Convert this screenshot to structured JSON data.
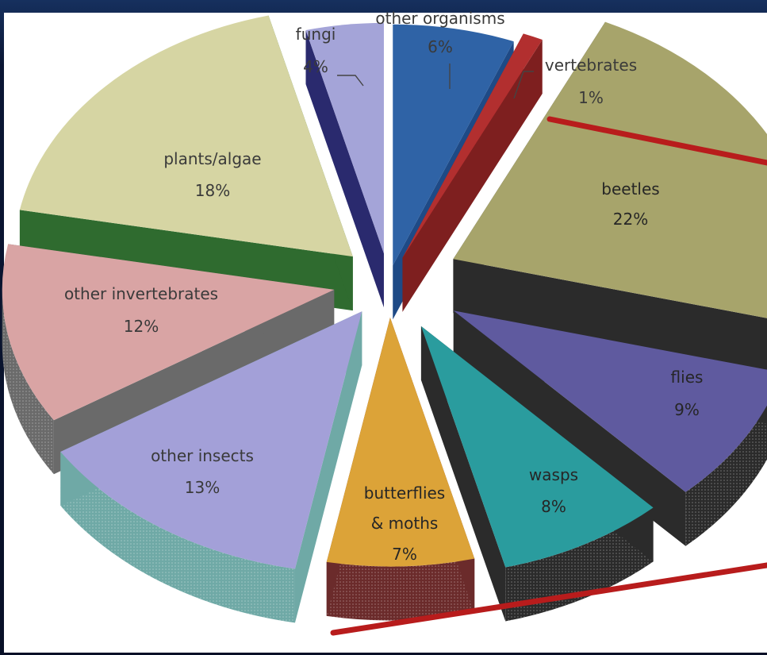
{
  "chart_data": {
    "type": "pie",
    "title": "",
    "legend": "none",
    "categories": [
      "other organisms",
      "vertebrates",
      "beetles",
      "flies",
      "wasps",
      "butterflies & moths",
      "other insects",
      "other invertebrates",
      "plants/algae",
      "fungi"
    ],
    "values": [
      6,
      1,
      22,
      9,
      8,
      7,
      13,
      12,
      18,
      4
    ],
    "labels": [
      {
        "name": "other organisms",
        "pct": "6%"
      },
      {
        "name": "vertebrates",
        "pct": "1%"
      },
      {
        "name": "beetles",
        "pct": "22%"
      },
      {
        "name": "flies",
        "pct": "9%"
      },
      {
        "name": "wasps",
        "pct": "8%"
      },
      {
        "name": [
          "butterflies",
          "& moths"
        ],
        "pct": "7%"
      },
      {
        "name": "other insects",
        "pct": "13%"
      },
      {
        "name": "other invertebrates",
        "pct": "12%"
      },
      {
        "name": "plants/algae",
        "pct": "18%"
      },
      {
        "name": "fungi",
        "pct": "4%"
      }
    ],
    "colors": {
      "top": [
        "#2f63a6",
        "#b22f2f",
        "#a7a46b",
        "#5f5a9f",
        "#2a9c9e",
        "#dca338",
        "#a3a0d8",
        "#d9a4a4",
        "#d6d5a3",
        "#a4a4d8"
      ],
      "side": [
        "#1e4a86",
        "#7e1f1f",
        "#2b2b2b",
        "#2b2b2b",
        "#2b2b2b",
        "#6b2b2b",
        "#6fa9a6",
        "#6a6a6a",
        "#2f6b2f",
        "#2a2a6e"
      ]
    },
    "callout_color": "#b81c1c"
  }
}
